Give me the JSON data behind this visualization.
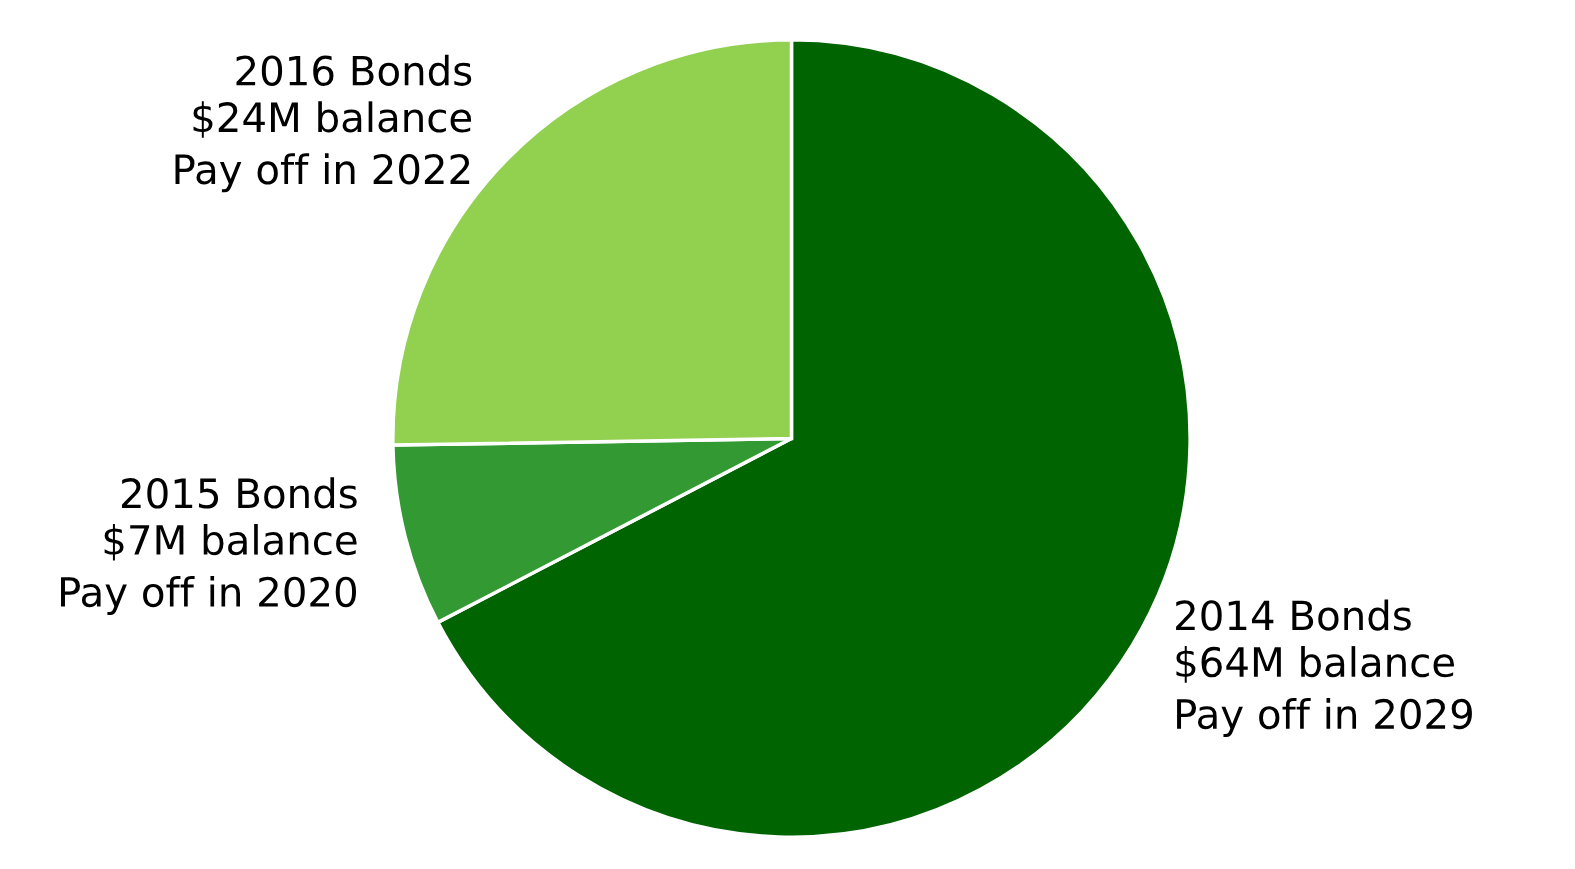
{
  "chart_data": {
    "type": "pie",
    "categories": [
      "2014 Bonds",
      "2015 Bonds",
      "2016 Bonds"
    ],
    "values": [
      64,
      7,
      24
    ],
    "value_labels": [
      "$64M balance",
      "$7M balance",
      "$24M balance"
    ],
    "annotations": [
      "Pay off in 2029",
      "Pay off in 2020",
      "Pay off in 2022"
    ],
    "colors": [
      "#006400",
      "#339933",
      "#92d050"
    ],
    "legend": false
  }
}
